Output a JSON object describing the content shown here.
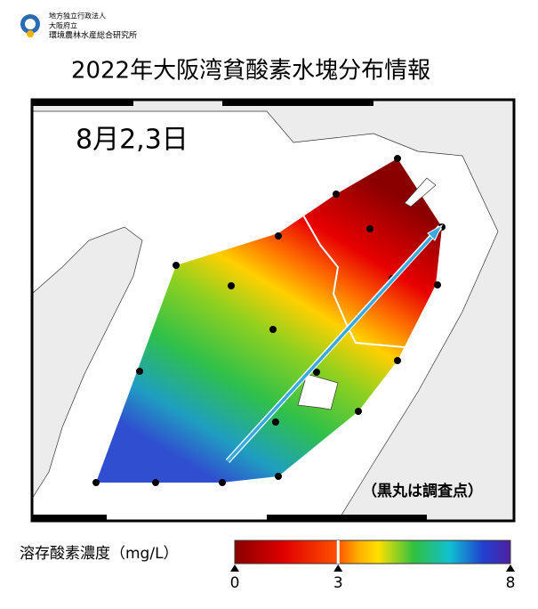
{
  "header": {
    "org": [
      "地方独立行政法人",
      "大阪府立",
      "環境農林水産総合研究所"
    ],
    "title": "2022年大阪湾貧酸素水塊分布情報"
  },
  "map": {
    "date": "8月2,3日",
    "note": "（黒丸は調査点）"
  },
  "colorbar": {
    "label": "溶存酸素濃度（mg/L）",
    "lim": [
      0,
      8
    ],
    "ticks": [
      0,
      3,
      8
    ]
  }
}
